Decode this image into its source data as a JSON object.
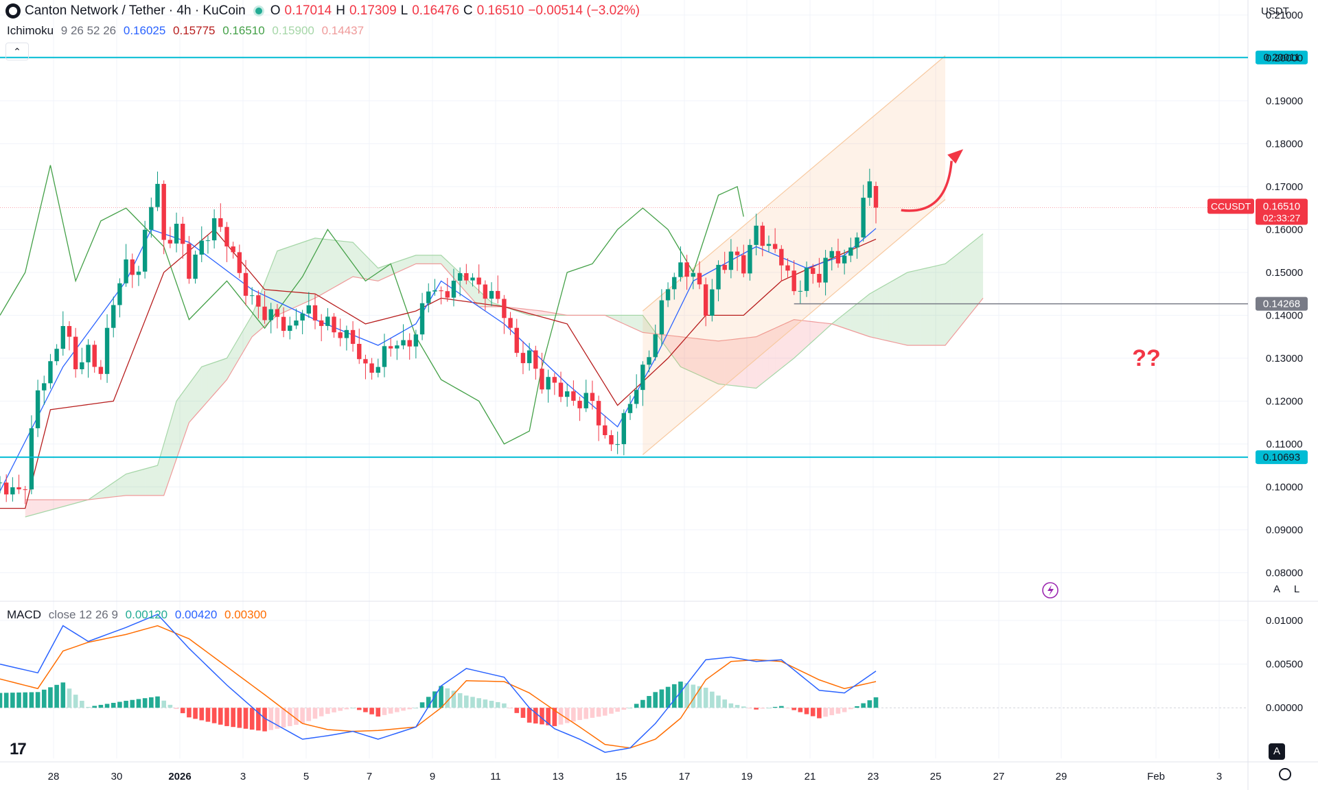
{
  "header": {
    "symbol_title": "Canton Network / Tether · 4h · KuCoin",
    "open_label": "O",
    "open": "0.17014",
    "high_label": "H",
    "high": "0.17309",
    "low_label": "L",
    "low": "0.16476",
    "close_label": "C",
    "close": "0.16510",
    "change": "−0.00514 (−3.02%)"
  },
  "ichimoku": {
    "label": "Ichimoku",
    "params": "9 26 52 26",
    "values": [
      "0.16025",
      "0.15775",
      "0.16510",
      "0.15900",
      "0.14437"
    ],
    "colors": [
      "#2962ff",
      "#b71c1c",
      "#43a047",
      "#a5d6a7",
      "#ef9a9a"
    ]
  },
  "macd": {
    "label": "MACD",
    "params": "close 12 26 9",
    "values": [
      "0.00120",
      "0.00420",
      "0.00300"
    ],
    "colors": [
      "#22ab94",
      "#2962ff",
      "#ff6d00"
    ]
  },
  "currency": "USDT",
  "ticker_tag": "CCUSDT",
  "last_price": "0.16510",
  "countdown": "02:33:27",
  "annotation_text": "??",
  "scale_buttons": [
    "A",
    "L"
  ],
  "bottom_button": "A",
  "colors": {
    "up": "#089981",
    "down": "#f23645",
    "level": "#00bcd4",
    "support": "#787b86",
    "channel": "#f7c9a0",
    "arrow": "#f23645"
  },
  "chart_data": [
    {
      "type": "candlestick",
      "y_ticks": [
        "0.21000",
        "0.20000",
        "0.19000",
        "0.18000",
        "0.17000",
        "0.16000",
        "0.15000",
        "0.14000",
        "0.13000",
        "0.12000",
        "0.11000",
        "0.10000",
        "0.09000",
        "0.08000"
      ],
      "ylim": [
        0.0735,
        0.2135
      ],
      "x_ticks": [
        "28",
        "30",
        "2026",
        "3",
        "5",
        "7",
        "9",
        "11",
        "13",
        "15",
        "17",
        "19",
        "21",
        "23",
        "25",
        "27",
        "29",
        "Feb",
        "3"
      ],
      "horizontal_levels": [
        {
          "value": 0.20011,
          "label": "0.20011"
        },
        {
          "value": 0.10693,
          "label": "0.10693"
        },
        {
          "value": 0.14268,
          "label": "0.14268"
        }
      ],
      "price_path": [
        [
          0,
          0.101
        ],
        [
          2,
          0.097
        ],
        [
          4,
          0.099
        ],
        [
          6,
          0.122
        ],
        [
          8,
          0.128
        ],
        [
          10,
          0.14
        ],
        [
          12,
          0.13
        ],
        [
          14,
          0.132
        ],
        [
          16,
          0.126
        ],
        [
          18,
          0.142
        ],
        [
          20,
          0.15
        ],
        [
          22,
          0.15
        ],
        [
          24,
          0.168
        ],
        [
          25,
          0.172
        ],
        [
          26,
          0.158
        ],
        [
          28,
          0.162
        ],
        [
          30,
          0.15
        ],
        [
          32,
          0.155
        ],
        [
          34,
          0.16
        ],
        [
          36,
          0.157
        ],
        [
          38,
          0.15
        ],
        [
          40,
          0.145
        ],
        [
          42,
          0.142
        ],
        [
          44,
          0.14
        ],
        [
          46,
          0.135
        ],
        [
          48,
          0.14
        ],
        [
          50,
          0.138
        ],
        [
          52,
          0.138
        ],
        [
          54,
          0.137
        ],
        [
          56,
          0.136
        ],
        [
          58,
          0.128
        ],
        [
          60,
          0.128
        ],
        [
          62,
          0.132
        ],
        [
          64,
          0.131
        ],
        [
          66,
          0.135
        ],
        [
          68,
          0.148
        ],
        [
          70,
          0.146
        ],
        [
          72,
          0.149
        ],
        [
          74,
          0.15
        ],
        [
          76,
          0.145
        ],
        [
          78,
          0.143
        ],
        [
          80,
          0.14
        ],
        [
          82,
          0.131
        ],
        [
          84,
          0.132
        ],
        [
          86,
          0.126
        ],
        [
          88,
          0.125
        ],
        [
          90,
          0.12
        ],
        [
          92,
          0.118
        ],
        [
          94,
          0.119
        ],
        [
          96,
          0.11
        ],
        [
          98,
          0.112
        ],
        [
          100,
          0.122
        ],
        [
          102,
          0.128
        ],
        [
          104,
          0.136
        ],
        [
          106,
          0.146
        ],
        [
          108,
          0.149
        ],
        [
          110,
          0.149
        ],
        [
          112,
          0.142
        ],
        [
          114,
          0.152
        ],
        [
          116,
          0.156
        ],
        [
          118,
          0.152
        ],
        [
          120,
          0.159
        ],
        [
          122,
          0.154
        ],
        [
          124,
          0.152
        ],
        [
          126,
          0.145
        ],
        [
          128,
          0.151
        ],
        [
          130,
          0.151
        ],
        [
          132,
          0.156
        ],
        [
          134,
          0.152
        ],
        [
          136,
          0.158
        ],
        [
          138,
          0.17
        ],
        [
          139,
          0.1651
        ]
      ],
      "tenkan_path": [
        [
          0,
          0.099
        ],
        [
          10,
          0.128
        ],
        [
          20,
          0.148
        ],
        [
          24,
          0.16
        ],
        [
          30,
          0.157
        ],
        [
          40,
          0.146
        ],
        [
          50,
          0.139
        ],
        [
          60,
          0.133
        ],
        [
          66,
          0.138
        ],
        [
          70,
          0.148
        ],
        [
          80,
          0.138
        ],
        [
          90,
          0.124
        ],
        [
          98,
          0.114
        ],
        [
          104,
          0.13
        ],
        [
          110,
          0.148
        ],
        [
          120,
          0.156
        ],
        [
          128,
          0.151
        ],
        [
          134,
          0.154
        ],
        [
          139,
          0.16025
        ]
      ],
      "kijun_path": [
        [
          0,
          0.095
        ],
        [
          4,
          0.095
        ],
        [
          8,
          0.118
        ],
        [
          18,
          0.12
        ],
        [
          22,
          0.135
        ],
        [
          26,
          0.15
        ],
        [
          34,
          0.16
        ],
        [
          42,
          0.146
        ],
        [
          50,
          0.145
        ],
        [
          58,
          0.138
        ],
        [
          66,
          0.141
        ],
        [
          70,
          0.144
        ],
        [
          80,
          0.142
        ],
        [
          90,
          0.138
        ],
        [
          98,
          0.119
        ],
        [
          106,
          0.13
        ],
        [
          112,
          0.14
        ],
        [
          118,
          0.14
        ],
        [
          124,
          0.148
        ],
        [
          130,
          0.152
        ],
        [
          139,
          0.15775
        ]
      ],
      "chikou_path": [
        [
          0,
          0.14
        ],
        [
          4,
          0.15
        ],
        [
          8,
          0.175
        ],
        [
          12,
          0.148
        ],
        [
          16,
          0.162
        ],
        [
          20,
          0.165
        ],
        [
          26,
          0.156
        ],
        [
          30,
          0.139
        ],
        [
          36,
          0.148
        ],
        [
          42,
          0.137
        ],
        [
          48,
          0.149
        ],
        [
          52,
          0.16
        ],
        [
          58,
          0.148
        ],
        [
          62,
          0.152
        ],
        [
          66,
          0.135
        ],
        [
          70,
          0.125
        ],
        [
          76,
          0.12
        ],
        [
          80,
          0.11
        ],
        [
          84,
          0.113
        ],
        [
          86,
          0.128
        ],
        [
          90,
          0.15
        ],
        [
          94,
          0.152
        ],
        [
          98,
          0.16
        ],
        [
          102,
          0.165
        ],
        [
          106,
          0.16
        ],
        [
          110,
          0.15
        ],
        [
          114,
          0.168
        ],
        [
          117,
          0.17
        ],
        [
          118,
          0.163
        ]
      ],
      "span_a_path": [
        [
          4,
          0.093
        ],
        [
          14,
          0.097
        ],
        [
          20,
          0.103
        ],
        [
          25,
          0.105
        ],
        [
          28,
          0.12
        ],
        [
          32,
          0.128
        ],
        [
          36,
          0.13
        ],
        [
          40,
          0.14
        ],
        [
          44,
          0.155
        ],
        [
          50,
          0.158
        ],
        [
          56,
          0.157
        ],
        [
          60,
          0.151
        ],
        [
          66,
          0.154
        ],
        [
          70,
          0.154
        ],
        [
          78,
          0.143
        ],
        [
          84,
          0.14
        ],
        [
          90,
          0.14
        ],
        [
          96,
          0.14
        ],
        [
          102,
          0.14
        ],
        [
          108,
          0.128
        ],
        [
          114,
          0.124
        ],
        [
          120,
          0.123
        ],
        [
          126,
          0.13
        ],
        [
          132,
          0.138
        ],
        [
          138,
          0.145
        ],
        [
          144,
          0.15
        ],
        [
          150,
          0.152
        ],
        [
          156,
          0.159
        ]
      ],
      "span_b_path": [
        [
          4,
          0.097
        ],
        [
          14,
          0.097
        ],
        [
          20,
          0.098
        ],
        [
          26,
          0.098
        ],
        [
          30,
          0.115
        ],
        [
          36,
          0.125
        ],
        [
          40,
          0.135
        ],
        [
          44,
          0.14
        ],
        [
          50,
          0.144
        ],
        [
          56,
          0.149
        ],
        [
          60,
          0.148
        ],
        [
          66,
          0.152
        ],
        [
          70,
          0.152
        ],
        [
          76,
          0.142
        ],
        [
          80,
          0.142
        ],
        [
          86,
          0.141
        ],
        [
          90,
          0.14
        ],
        [
          96,
          0.14
        ],
        [
          102,
          0.136
        ],
        [
          108,
          0.135
        ],
        [
          114,
          0.134
        ],
        [
          120,
          0.135
        ],
        [
          126,
          0.139
        ],
        [
          132,
          0.138
        ],
        [
          138,
          0.135
        ],
        [
          144,
          0.133
        ],
        [
          150,
          0.133
        ],
        [
          156,
          0.144
        ]
      ],
      "channel": {
        "lower": [
          [
            102,
            0.1075
          ],
          [
            150,
            0.167
          ]
        ],
        "upper": [
          [
            102,
            0.141
          ],
          [
            150,
            0.2005
          ]
        ]
      },
      "forecast_arrow": [
        [
          143,
          0.1645
        ],
        [
          147,
          0.168
        ],
        [
          151,
          0.176
        ]
      ]
    },
    {
      "type": "macd",
      "y_ticks": [
        "0.01000",
        "0.00500",
        "0.00000"
      ],
      "ylim": [
        -0.0058,
        0.0122
      ],
      "macd_path": [
        [
          0,
          0.005
        ],
        [
          6,
          0.004
        ],
        [
          10,
          0.0094
        ],
        [
          14,
          0.0076
        ],
        [
          20,
          0.0092
        ],
        [
          25,
          0.0107
        ],
        [
          30,
          0.0068
        ],
        [
          36,
          0.0026
        ],
        [
          42,
          -0.0012
        ],
        [
          48,
          -0.0036
        ],
        [
          52,
          -0.0032
        ],
        [
          56,
          -0.0027
        ],
        [
          60,
          -0.0036
        ],
        [
          66,
          -0.0022
        ],
        [
          70,
          0.0025
        ],
        [
          74,
          0.0045
        ],
        [
          80,
          0.0035
        ],
        [
          84,
          0.0
        ],
        [
          88,
          -0.0024
        ],
        [
          92,
          -0.0036
        ],
        [
          96,
          -0.0051
        ],
        [
          100,
          -0.0046
        ],
        [
          104,
          -0.0018
        ],
        [
          108,
          0.0018
        ],
        [
          112,
          0.0055
        ],
        [
          116,
          0.0058
        ],
        [
          120,
          0.0053
        ],
        [
          124,
          0.0055
        ],
        [
          130,
          0.002
        ],
        [
          134,
          0.0017
        ],
        [
          139,
          0.0042
        ]
      ],
      "signal_path": [
        [
          0,
          0.0033
        ],
        [
          6,
          0.0022
        ],
        [
          10,
          0.0065
        ],
        [
          14,
          0.0075
        ],
        [
          20,
          0.0084
        ],
        [
          25,
          0.0094
        ],
        [
          30,
          0.0079
        ],
        [
          36,
          0.0047
        ],
        [
          42,
          0.0015
        ],
        [
          48,
          -0.0018
        ],
        [
          52,
          -0.0025
        ],
        [
          56,
          -0.0027
        ],
        [
          60,
          -0.0026
        ],
        [
          66,
          -0.0022
        ],
        [
          70,
          0.0
        ],
        [
          74,
          0.0031
        ],
        [
          80,
          0.003
        ],
        [
          84,
          0.0017
        ],
        [
          88,
          -0.0003
        ],
        [
          92,
          -0.0022
        ],
        [
          96,
          -0.0042
        ],
        [
          100,
          -0.0046
        ],
        [
          104,
          -0.0036
        ],
        [
          108,
          -0.0012
        ],
        [
          112,
          0.0032
        ],
        [
          116,
          0.0053
        ],
        [
          120,
          0.0055
        ],
        [
          124,
          0.0053
        ],
        [
          130,
          0.0032
        ],
        [
          134,
          0.0022
        ],
        [
          139,
          0.003
        ]
      ]
    }
  ]
}
